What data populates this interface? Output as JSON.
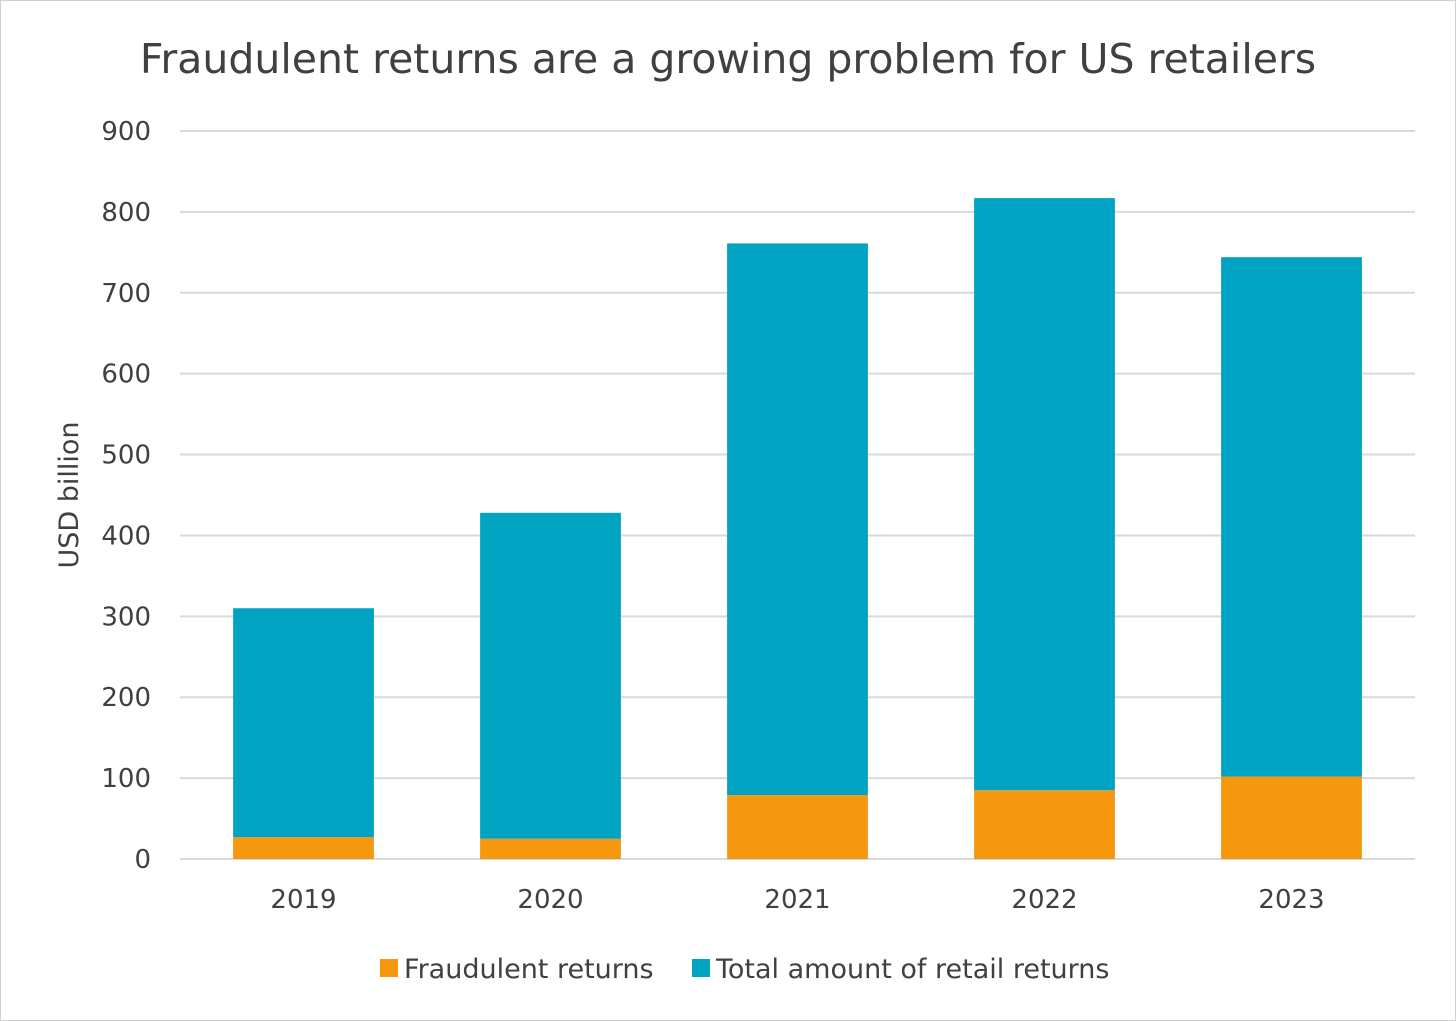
{
  "chart_data": {
    "type": "bar",
    "stacked": true,
    "title": "Fraudulent returns are a growing problem for US retailers",
    "xlabel": "",
    "ylabel": "USD billion",
    "categories": [
      "2019",
      "2020",
      "2021",
      "2022",
      "2023"
    ],
    "series": [
      {
        "name": "Fraudulent returns",
        "color": "#f5970f",
        "values": [
          27,
          25,
          79,
          85,
          102
        ]
      },
      {
        "name": "Total amount of retail returns",
        "color": "#00a3c1",
        "values": [
          283,
          403,
          682,
          732,
          642
        ]
      }
    ],
    "ylim": [
      0,
      900
    ],
    "yticks": [
      0,
      100,
      200,
      300,
      400,
      500,
      600,
      700,
      800,
      900
    ],
    "grid": true,
    "legend_position": "bottom"
  }
}
